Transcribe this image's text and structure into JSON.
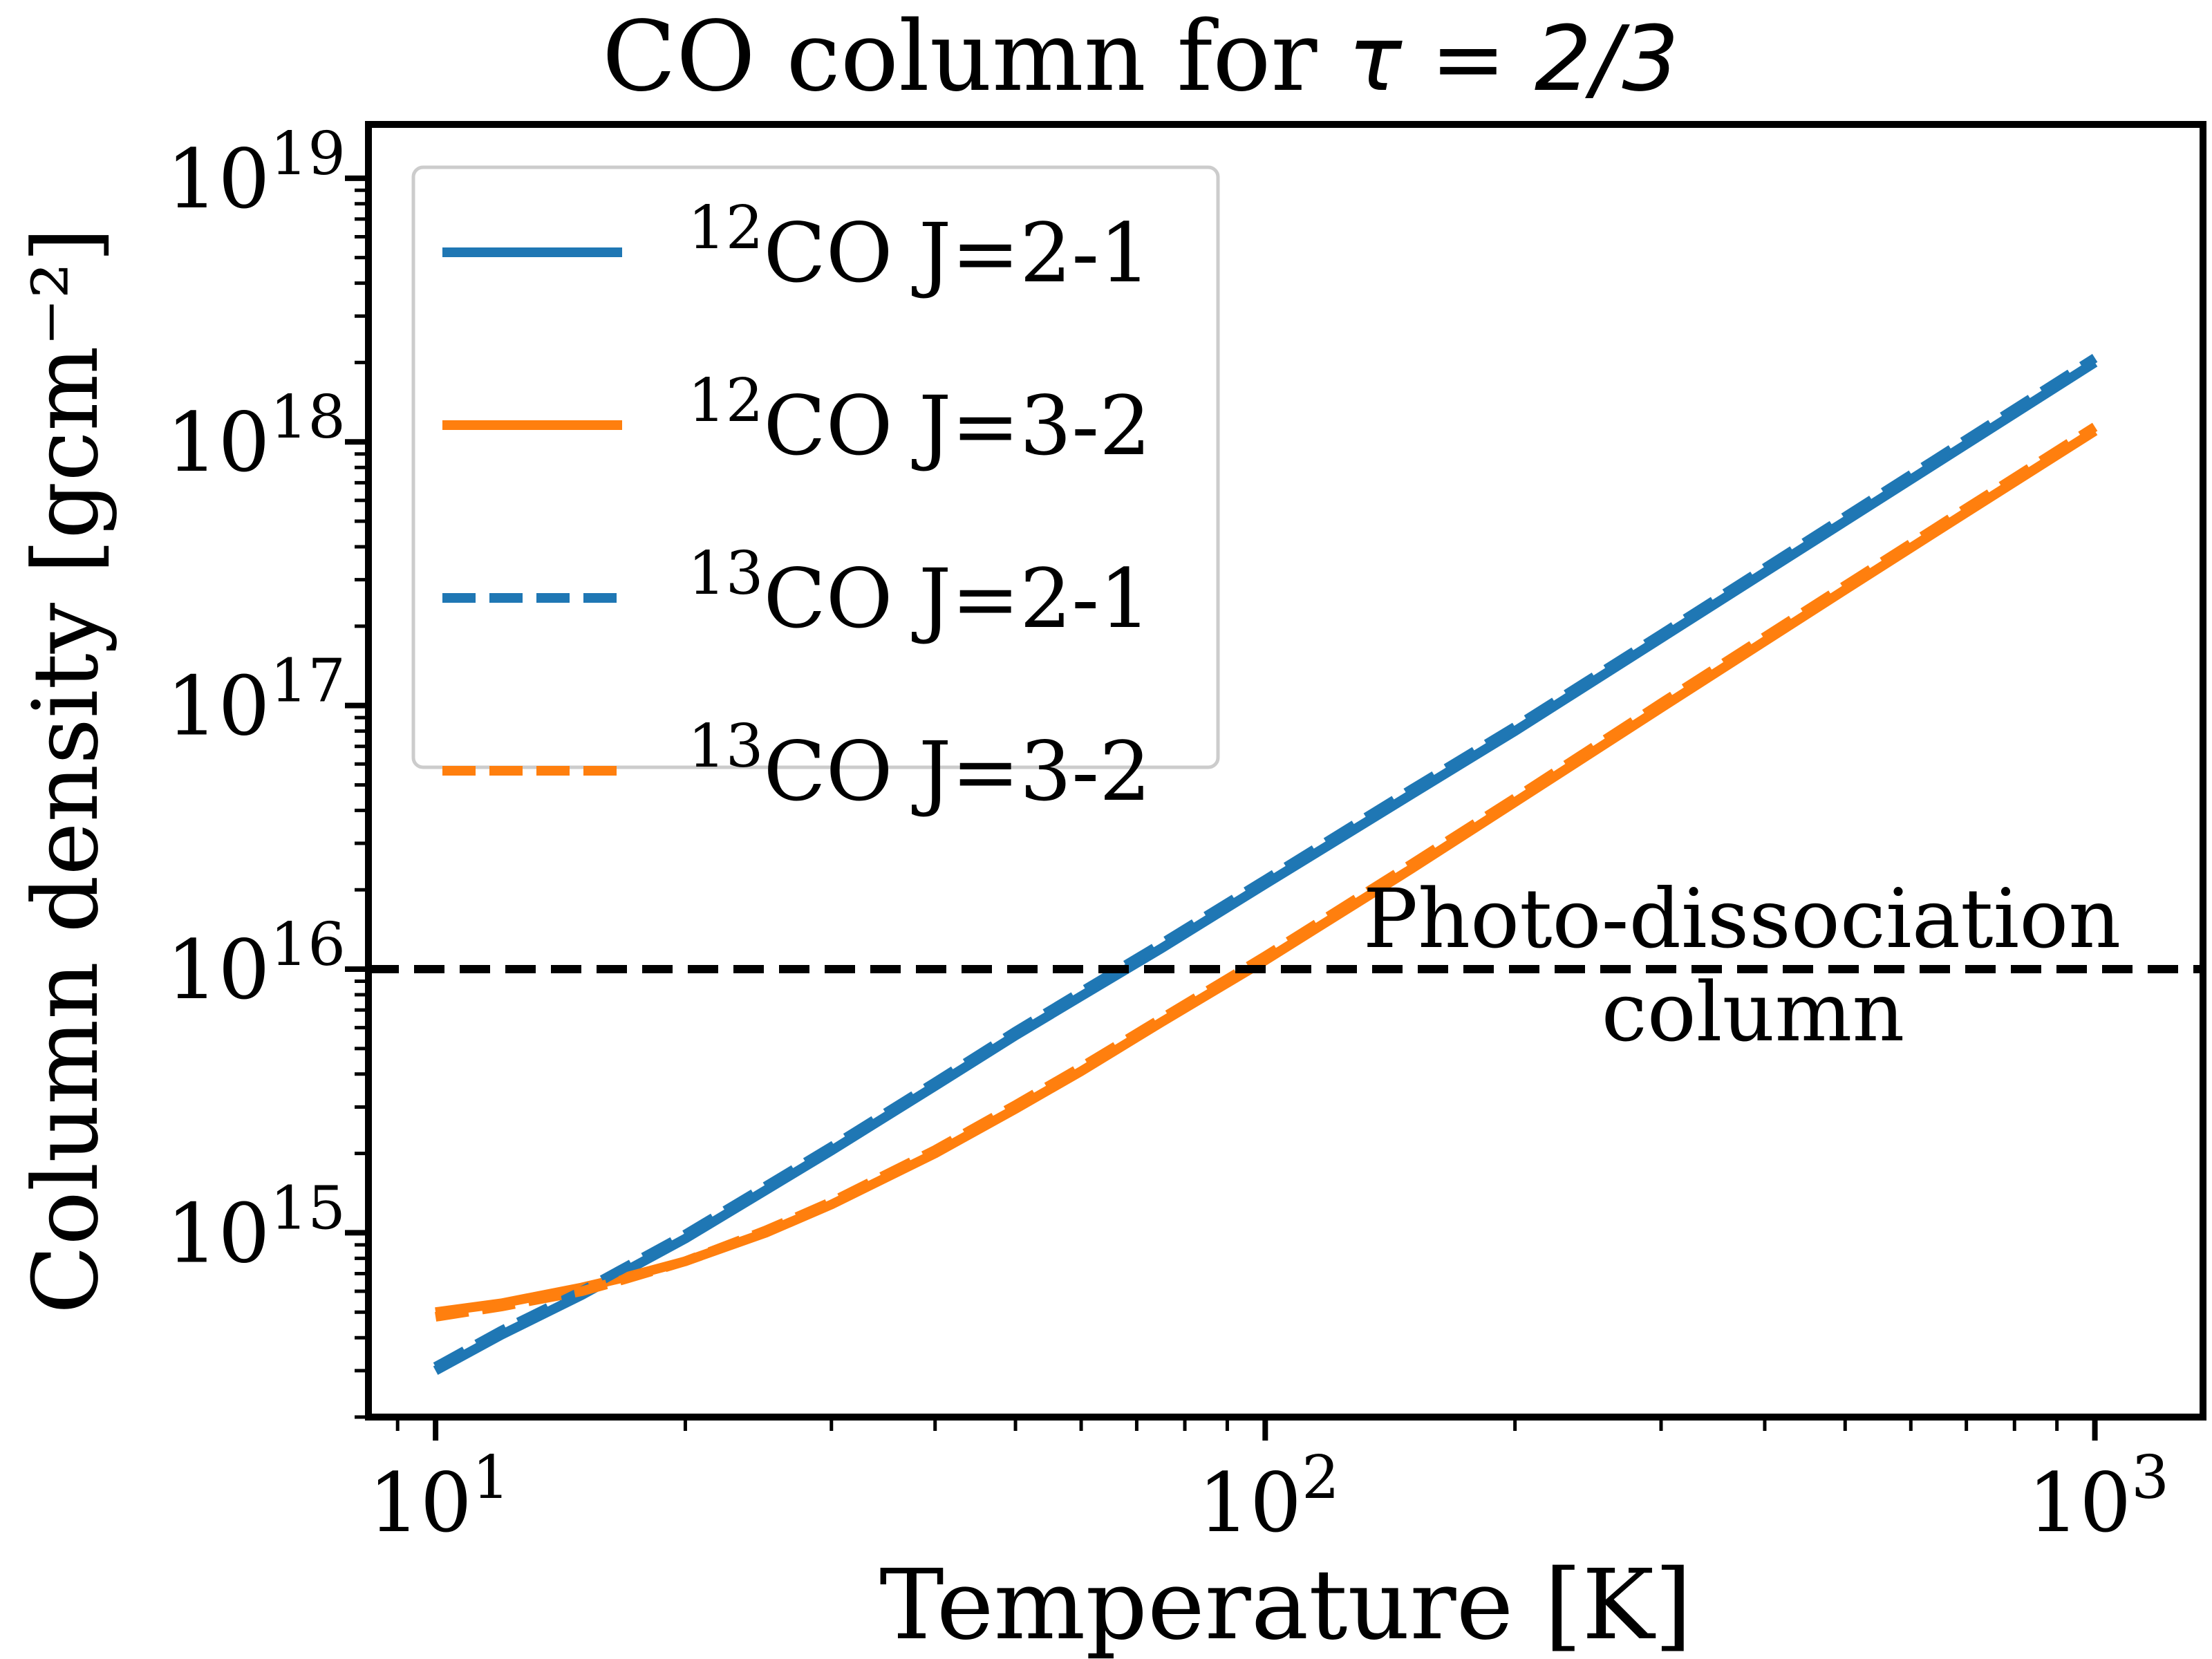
{
  "chart_data": {
    "type": "line",
    "title": "CO column for ",
    "title_math": "τ = 2/3",
    "xlabel": "Temperature [K]",
    "ylabel": "Column density [gcm⁻²]",
    "xscale": "log",
    "yscale": "log",
    "xlim": [
      8.3,
      1350
    ],
    "ylim": [
      200000000000000.0,
      1.6e+19
    ],
    "x_ticks": [
      {
        "base": "10",
        "exp": "1",
        "value": 10
      },
      {
        "base": "10",
        "exp": "2",
        "value": 100
      },
      {
        "base": "10",
        "exp": "3",
        "value": 1000
      }
    ],
    "y_ticks": [
      {
        "base": "10",
        "exp": "15",
        "value": 1000000000000000.0
      },
      {
        "base": "10",
        "exp": "16",
        "value": 1e+16
      },
      {
        "base": "10",
        "exp": "17",
        "value": 1e+17
      },
      {
        "base": "10",
        "exp": "18",
        "value": 1e+18
      },
      {
        "base": "10",
        "exp": "19",
        "value": 1e+19
      }
    ],
    "grid": false,
    "legend_position": "upper-left",
    "x": [
      10,
      12,
      15,
      17,
      20,
      25,
      30,
      40,
      50,
      60,
      75,
      100,
      150,
      200,
      300,
      500,
      700,
      1000
    ],
    "series": [
      {
        "name_sup": "12",
        "name_rest": "CO J=2-1",
        "color": "#1f77b4",
        "style": "solid",
        "values": [
          300000000000000.0,
          410000000000000.0,
          580000000000000.0,
          720000000000000.0,
          950000000000000.0,
          1450000000000000.0,
          2050000000000000.0,
          3600000000000000.0,
          5600000000000000.0,
          7900000000000000.0,
          1.2e+16,
          2.1e+16,
          4.6e+16,
          8e+16,
          1.8e+17,
          5e+17,
          9.8e+17,
          2e+18
        ]
      },
      {
        "name_sup": "12",
        "name_rest": "CO J=3-2",
        "color": "#ff7f0e",
        "style": "solid",
        "values": [
          500000000000000.0,
          540000000000000.0,
          620000000000000.0,
          680000000000000.0,
          780000000000000.0,
          1000000000000000.0,
          1280000000000000.0,
          2000000000000000.0,
          2950000000000000.0,
          4100000000000000.0,
          6300000000000000.0,
          1.08e+16,
          2.4e+16,
          4.3e+16,
          9.8e+16,
          2.75e+17,
          5.4e+17,
          1.1e+18
        ]
      },
      {
        "name_sup": "13",
        "name_rest": "CO J=2-1",
        "color": "#1f77b4",
        "style": "dashed",
        "values": [
          310000000000000.0,
          425000000000000.0,
          600000000000000.0,
          745000000000000.0,
          985000000000000.0,
          1500000000000000.0,
          2120000000000000.0,
          3720000000000000.0,
          5800000000000000.0,
          8200000000000000.0,
          1.25e+16,
          2.18e+16,
          4.8e+16,
          8.3e+16,
          1.86e+17,
          5.2e+17,
          1.02e+18,
          2.08e+18
        ]
      },
      {
        "name_sup": "13",
        "name_rest": "CO J=3-2",
        "color": "#ff7f0e",
        "style": "dashed",
        "values": [
          480000000000000.0,
          525000000000000.0,
          600000000000000.0,
          670000000000000.0,
          780000000000000.0,
          1020000000000000.0,
          1310000000000000.0,
          2060000000000000.0,
          3050000000000000.0,
          4250000000000000.0,
          6500000000000000.0,
          1.12e+16,
          2.5e+16,
          4.45e+16,
          1.02e+17,
          2.85e+17,
          5.6e+17,
          1.14e+18
        ]
      }
    ],
    "hline": {
      "y": 1e+16,
      "color": "#000000",
      "style": "dashed"
    },
    "annotation": [
      "Photo-dissociation",
      "column"
    ]
  }
}
